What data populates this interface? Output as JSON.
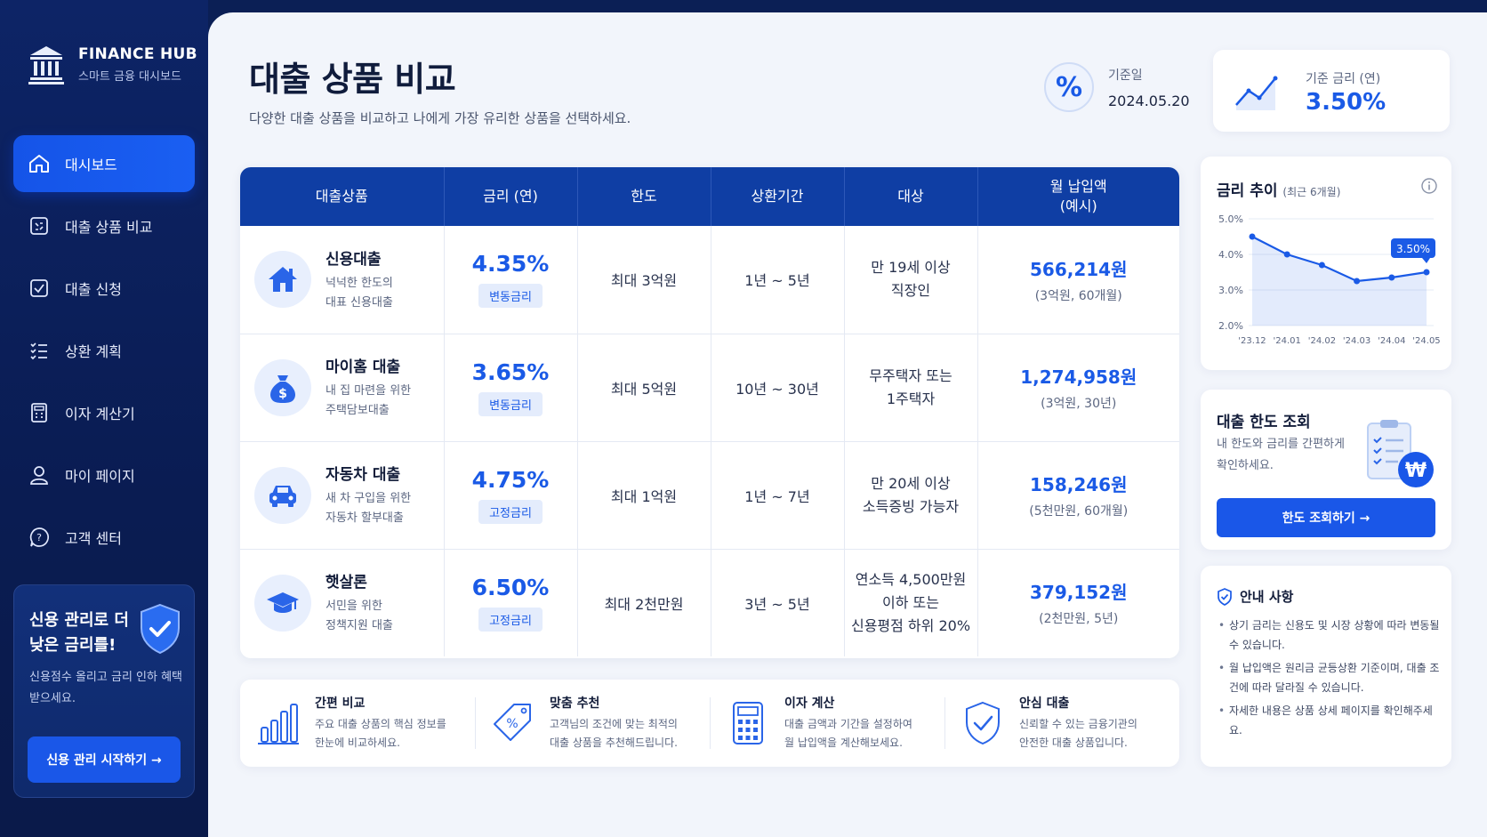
{
  "brand": {
    "name": "FINANCE HUB",
    "subtitle": "스마트 금융 대시보드"
  },
  "sidebar": {
    "items": [
      {
        "label": "대시보드",
        "icon": "home-icon",
        "active": true
      },
      {
        "label": "대출 상품 비교",
        "icon": "compare-icon",
        "active": false
      },
      {
        "label": "대출 신청",
        "icon": "checkbox-icon",
        "active": false
      },
      {
        "label": "상환 계획",
        "icon": "list-icon",
        "active": false
      },
      {
        "label": "이자 계산기",
        "icon": "calculator-icon",
        "active": false
      },
      {
        "label": "마이 페이지",
        "icon": "user-icon",
        "active": false
      },
      {
        "label": "고객 센터",
        "icon": "help-icon",
        "active": false
      }
    ],
    "promo": {
      "title": "신용 관리로 더 낮은 금리를!",
      "desc": "신용점수 올리고 금리 인하 혜택 받으세요.",
      "button": "신용 관리 시작하기 →"
    }
  },
  "header": {
    "title": "대출 상품 비교",
    "subtitle": "다양한 대출 상품을 비교하고 나에게 가장 유리한 상품을 선택하세요.",
    "date_label": "기준일",
    "date_value": "2024.05.20",
    "base_rate_label": "기준 금리 (연)",
    "base_rate_value": "3.50%"
  },
  "table": {
    "headers": [
      "대출상품",
      "금리 (연)",
      "한도",
      "상환기간",
      "대상",
      "월 납입액\n(예시)"
    ],
    "rows": [
      {
        "name": "신용대출",
        "desc": "넉넉한 한도의\n대표 신용대출",
        "icon": "house-icon",
        "rate": "4.35%",
        "rate_type": "변동금리",
        "limit": "최대 3억원",
        "term": "1년 ~ 5년",
        "target": "만 19세 이상\n직장인",
        "payment": "566,214원",
        "payment_note": "(3억원, 60개월)"
      },
      {
        "name": "마이홈 대출",
        "desc": "내 집 마련을 위한\n주택담보대출",
        "icon": "money-bag-icon",
        "rate": "3.65%",
        "rate_type": "변동금리",
        "limit": "최대 5억원",
        "term": "10년 ~ 30년",
        "target": "무주택자 또는\n1주택자",
        "payment": "1,274,958원",
        "payment_note": "(3억원, 30년)"
      },
      {
        "name": "자동차 대출",
        "desc": "새 차 구입을 위한\n자동차 할부대출",
        "icon": "car-icon",
        "rate": "4.75%",
        "rate_type": "고정금리",
        "limit": "최대 1억원",
        "term": "1년 ~ 7년",
        "target": "만 20세 이상\n소득증빙 가능자",
        "payment": "158,246원",
        "payment_note": "(5천만원, 60개월)"
      },
      {
        "name": "햇살론",
        "desc": "서민을 위한\n정책지원 대출",
        "icon": "graduation-cap-icon",
        "rate": "6.50%",
        "rate_type": "고정금리",
        "limit": "최대 2천만원",
        "term": "3년 ~ 5년",
        "target": "연소득 4,500만원\n이하 또는\n신용평점 하위 20%",
        "payment": "379,152원",
        "payment_note": "(2천만원, 5년)"
      }
    ]
  },
  "features": [
    {
      "title": "간편 비교",
      "desc": "주요 대출 상품의 핵심 정보를\n한눈에 비교하세요.",
      "icon": "bar-chart-icon"
    },
    {
      "title": "맞춤 추천",
      "desc": "고객님의 조건에 맞는 최적의\n대출 상품을 추천해드립니다.",
      "icon": "percent-tag-icon"
    },
    {
      "title": "이자 계산",
      "desc": "대출 금액과 기간을 설정하여\n월 납입액을 계산해보세요.",
      "icon": "calculator-icon"
    },
    {
      "title": "안심 대출",
      "desc": "신뢰할 수 있는 금융기관의\n안전한 대출 상품입니다.",
      "icon": "shield-check-icon"
    }
  ],
  "trend": {
    "title": "금리 추이",
    "period": "(최근 6개월)"
  },
  "chart_data": {
    "type": "area",
    "x": [
      "'23.12",
      "'24.01",
      "'24.02",
      "'24.03",
      "'24.04",
      "'24.05"
    ],
    "series": [
      {
        "values": [
          4.5,
          4.0,
          3.7,
          3.25,
          3.35,
          3.5
        ]
      }
    ],
    "yticks": [
      "5.0%",
      "4.0%",
      "3.0%",
      "2.0%"
    ],
    "ylim": [
      2.0,
      5.0
    ],
    "callout": "3.50%",
    "color": "#1a5ae6"
  },
  "limit_card": {
    "title": "대출 한도 조회",
    "desc": "내 한도와 금리를 간편하게 확인하세요.",
    "button": "한도 조회하기 →"
  },
  "notice": {
    "title": "안내 사항",
    "items": [
      "상기 금리는 신용도 및 시장 상황에 따라 변동될 수 있습니다.",
      "월 납입액은 원리금 균등상환 기준이며, 대출 조건에 따라 달라질 수 있습니다.",
      "자세한 내용은 상품 상세 페이지를 확인해주세요."
    ]
  }
}
